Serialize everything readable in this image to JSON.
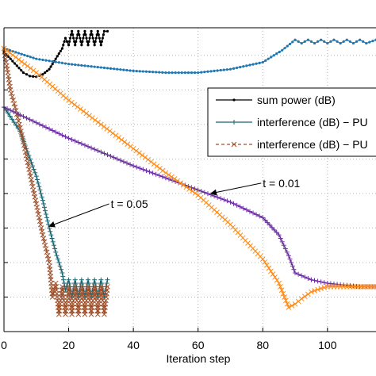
{
  "chart_data": {
    "type": "line",
    "xlabel": "Iteration step",
    "ylabel": "",
    "xlim": [
      0,
      115
    ],
    "ylim": [
      0,
      8.8
    ],
    "grid": true,
    "x_ticks": [
      "0",
      "20",
      "40",
      "60",
      "80",
      "100"
    ],
    "legend_position": "right",
    "series": [
      {
        "name": "sum power (dB)",
        "color": "#000000",
        "marker": "dot",
        "points": [
          [
            0,
            8.1
          ],
          [
            2,
            7.9
          ],
          [
            4,
            7.7
          ],
          [
            6,
            7.5
          ],
          [
            8,
            7.4
          ],
          [
            10,
            7.38
          ],
          [
            12,
            7.45
          ],
          [
            14,
            7.6
          ],
          [
            16,
            7.9
          ],
          [
            18,
            8.2
          ],
          [
            19,
            8.5
          ],
          [
            20,
            8.3
          ],
          [
            21,
            8.7
          ],
          [
            22,
            8.3
          ],
          [
            23,
            8.7
          ],
          [
            24,
            8.3
          ],
          [
            25,
            8.7
          ],
          [
            26,
            8.3
          ],
          [
            27,
            8.7
          ],
          [
            28,
            8.3
          ],
          [
            29,
            8.7
          ],
          [
            30,
            8.3
          ],
          [
            31,
            8.7
          ],
          [
            32,
            8.7
          ]
        ]
      },
      {
        "name": "",
        "color": "#1f77b4",
        "marker": "dot",
        "points": [
          [
            0,
            8.2
          ],
          [
            10,
            7.9
          ],
          [
            20,
            7.75
          ],
          [
            30,
            7.65
          ],
          [
            40,
            7.55
          ],
          [
            50,
            7.5
          ],
          [
            60,
            7.5
          ],
          [
            70,
            7.6
          ],
          [
            80,
            7.8
          ],
          [
            86,
            8.15
          ],
          [
            90,
            8.45
          ],
          [
            92,
            8.35
          ],
          [
            94,
            8.45
          ],
          [
            96,
            8.35
          ],
          [
            98,
            8.45
          ],
          [
            100,
            8.35
          ],
          [
            102,
            8.45
          ],
          [
            104,
            8.35
          ],
          [
            106,
            8.45
          ],
          [
            108,
            8.35
          ],
          [
            110,
            8.45
          ],
          [
            112,
            8.35
          ],
          [
            115,
            8.45
          ]
        ]
      },
      {
        "name": "interference (dB) − PU",
        "color": "#1a6470",
        "marker": "plus",
        "points": [
          [
            0,
            6.5
          ],
          [
            5,
            5.8
          ],
          [
            10,
            4.5
          ],
          [
            12,
            3.8
          ],
          [
            14,
            3.0
          ],
          [
            16,
            2.3
          ],
          [
            18,
            1.7
          ],
          [
            19,
            1.2
          ],
          [
            20,
            1.5
          ],
          [
            21,
            1.0
          ],
          [
            22,
            1.5
          ],
          [
            23,
            1.0
          ],
          [
            24,
            1.5
          ],
          [
            25,
            1.0
          ],
          [
            26,
            1.5
          ],
          [
            27,
            1.0
          ],
          [
            28,
            1.5
          ],
          [
            29,
            1.0
          ],
          [
            30,
            1.5
          ],
          [
            31,
            1.0
          ],
          [
            32,
            1.5
          ]
        ]
      },
      {
        "name": "interference (dB) − PU",
        "color": "#a0522d",
        "marker": "x",
        "points": [
          [
            0,
            8.2
          ],
          [
            2,
            7.0
          ],
          [
            4,
            6.3
          ],
          [
            6,
            5.5
          ],
          [
            8,
            4.6
          ],
          [
            10,
            3.7
          ],
          [
            12,
            2.8
          ],
          [
            14,
            2.0
          ],
          [
            15,
            1.0
          ],
          [
            16,
            1.4
          ],
          [
            17,
            0.5
          ],
          [
            18,
            1.3
          ],
          [
            19,
            0.5
          ],
          [
            20,
            1.3
          ],
          [
            21,
            0.5
          ],
          [
            22,
            1.3
          ],
          [
            23,
            0.5
          ],
          [
            24,
            1.3
          ],
          [
            25,
            0.5
          ],
          [
            26,
            1.3
          ],
          [
            27,
            0.5
          ],
          [
            28,
            1.3
          ],
          [
            29,
            0.5
          ],
          [
            30,
            1.3
          ],
          [
            31,
            0.5
          ],
          [
            32,
            1.3
          ]
        ]
      },
      {
        "name": "",
        "color": "#6b2fa0",
        "marker": "plus",
        "points": [
          [
            0,
            6.5
          ],
          [
            10,
            6.05
          ],
          [
            20,
            5.6
          ],
          [
            30,
            5.2
          ],
          [
            40,
            4.8
          ],
          [
            50,
            4.45
          ],
          [
            60,
            4.1
          ],
          [
            70,
            3.75
          ],
          [
            80,
            3.3
          ],
          [
            85,
            2.8
          ],
          [
            88,
            2.2
          ],
          [
            90,
            1.7
          ],
          [
            95,
            1.5
          ],
          [
            100,
            1.4
          ],
          [
            105,
            1.35
          ],
          [
            110,
            1.3
          ],
          [
            115,
            1.3
          ]
        ]
      },
      {
        "name": "",
        "color": "#ff8c1a",
        "marker": "x",
        "points": [
          [
            0,
            8.2
          ],
          [
            10,
            7.5
          ],
          [
            20,
            6.7
          ],
          [
            30,
            6.0
          ],
          [
            40,
            5.3
          ],
          [
            50,
            4.6
          ],
          [
            60,
            3.95
          ],
          [
            70,
            3.1
          ],
          [
            80,
            2.1
          ],
          [
            85,
            1.4
          ],
          [
            88,
            0.7
          ],
          [
            90,
            0.8
          ],
          [
            92,
            0.95
          ],
          [
            95,
            1.15
          ],
          [
            98,
            1.25
          ],
          [
            100,
            1.3
          ],
          [
            105,
            1.3
          ],
          [
            110,
            1.3
          ],
          [
            115,
            1.3
          ]
        ]
      }
    ],
    "annotations": [
      {
        "text": "t = 0.05",
        "x": 33,
        "y": 3.7,
        "arrow_to": [
          14,
          3.05
        ]
      },
      {
        "text": "t = 0.01",
        "x": 80,
        "y": 4.3,
        "arrow_to": [
          64,
          4.0
        ]
      }
    ]
  }
}
